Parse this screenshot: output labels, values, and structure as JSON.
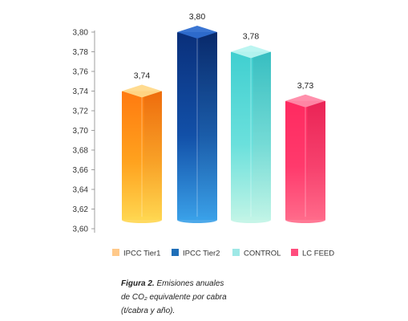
{
  "chart_data": {
    "type": "bar",
    "categories": [
      "IPCC Tier1",
      "IPCC Tier2",
      "CONTROL",
      "LC FEED"
    ],
    "values": [
      3.74,
      3.8,
      3.78,
      3.73
    ],
    "value_labels": [
      "3,74",
      "3,80",
      "3,78",
      "3,73"
    ],
    "colors": [
      "#ff8a1c",
      "#0d3a8c",
      "#4ed8d8",
      "#ff2f6a"
    ],
    "ylim": [
      3.6,
      3.8
    ],
    "yticks": [
      3.6,
      3.62,
      3.64,
      3.66,
      3.68,
      3.7,
      3.72,
      3.74,
      3.76,
      3.78,
      3.8
    ],
    "ytick_labels": [
      "3,60",
      "3,62",
      "3,64",
      "3,66",
      "3,68",
      "3,70",
      "3,72",
      "3,74",
      "3,76",
      "3,78",
      "3,80"
    ],
    "grid": false,
    "legend_position": "bottom",
    "legend": [
      {
        "label": "IPCC Tier1",
        "color": "#ffc98a"
      },
      {
        "label": "IPCC Tier2",
        "color": "#1f6fb8"
      },
      {
        "label": "CONTROL",
        "color": "#9ee8e6"
      },
      {
        "label": "LC FEED",
        "color": "#ff4d7d"
      }
    ]
  },
  "caption": {
    "figure_label": "Figura 2.",
    "line1": " Emisiones anuales",
    "line2": "de CO₂ equivalente por cabra",
    "line3": "(t/cabra y año)."
  }
}
